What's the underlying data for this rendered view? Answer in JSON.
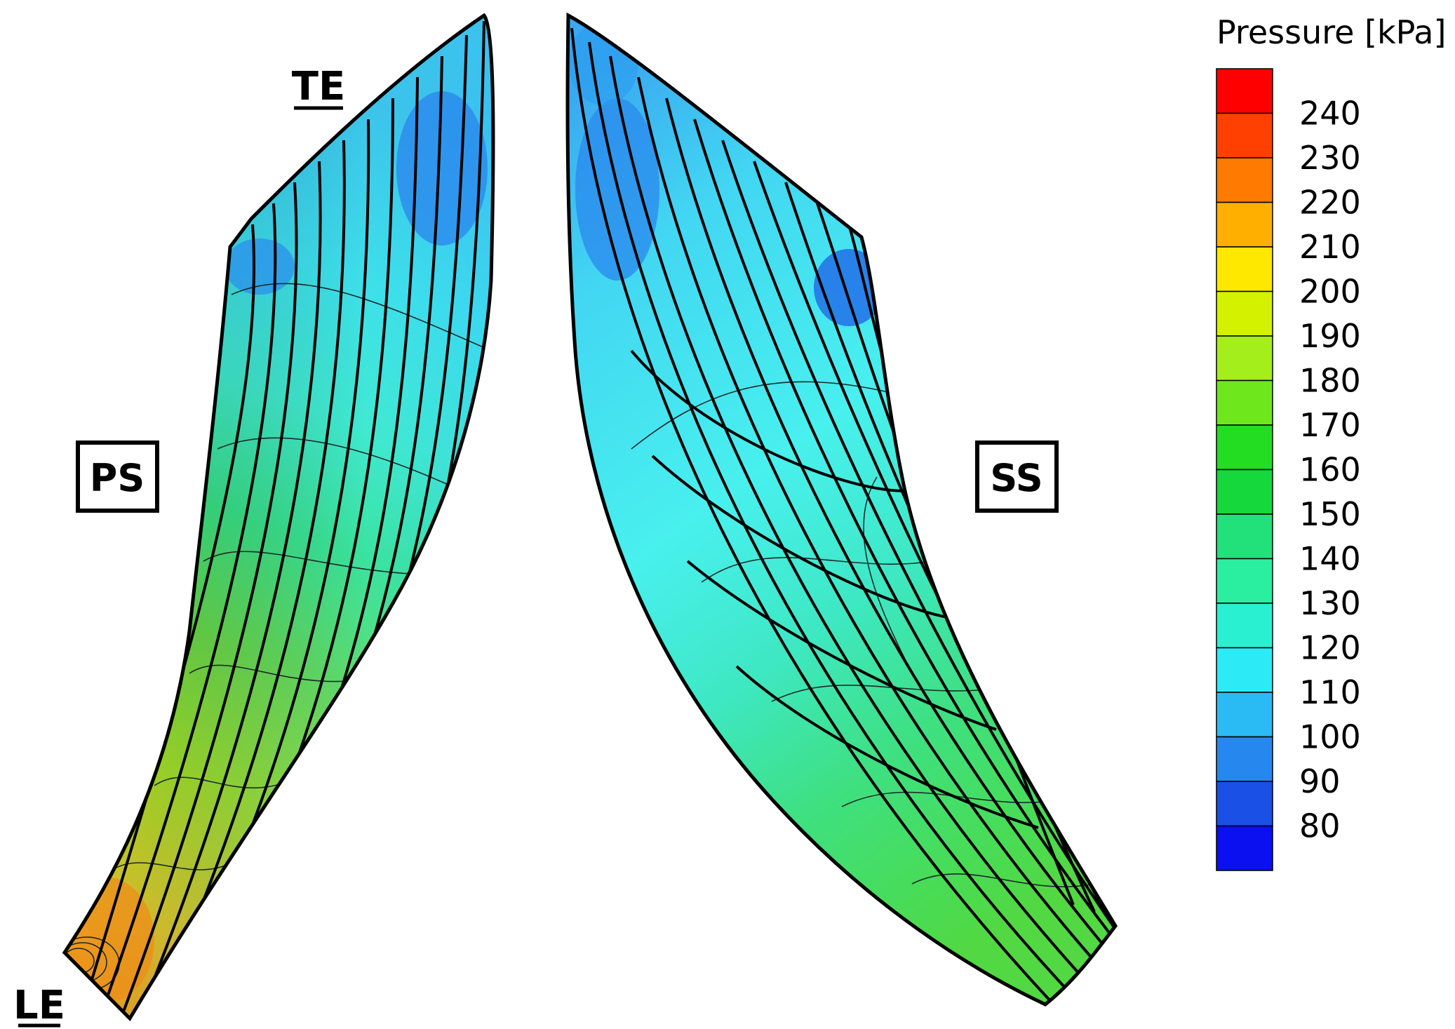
{
  "labels": {
    "te": "TE",
    "le": "LE",
    "ps": "PS",
    "ss": "SS"
  },
  "legend": {
    "title": "Pressure [kPa]",
    "levels": [
      240,
      230,
      220,
      210,
      200,
      190,
      180,
      170,
      160,
      150,
      140,
      130,
      120,
      110,
      100,
      90,
      80
    ],
    "colors": [
      "#ff0000",
      "#ff4000",
      "#ff7a00",
      "#ffaf00",
      "#ffe800",
      "#d4f200",
      "#a4ee1c",
      "#6ee81c",
      "#22dd22",
      "#14d83c",
      "#22e07a",
      "#2aefa0",
      "#2af0d2",
      "#2ceaf6",
      "#2abaf4",
      "#2688ee",
      "#1a50e6",
      "#0a10f0"
    ]
  },
  "fields": {
    "pressure_side": {
      "le_kpa": 215,
      "mid_kpa": 170,
      "te_kpa": 110
    },
    "suction_side": {
      "le_kpa": 150,
      "mid_kpa": 125,
      "te_kpa": 100
    }
  }
}
